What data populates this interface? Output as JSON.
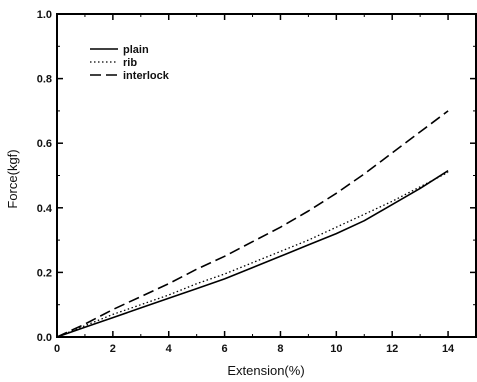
{
  "chart_data": {
    "type": "line",
    "title": "",
    "xlabel": "Extension(%)",
    "ylabel": "Force(kgf)",
    "xlim": [
      0,
      15
    ],
    "ylim": [
      0.0,
      1.0
    ],
    "xticks": [
      "0",
      "2",
      "4",
      "6",
      "8",
      "10",
      "12",
      "14"
    ],
    "yticks": [
      "0.0",
      "0.2",
      "0.4",
      "0.6",
      "0.8",
      "1.0"
    ],
    "grid": false,
    "legend_position": "top-left",
    "series": [
      {
        "name": "plain",
        "style": "solid",
        "color": "#000000",
        "x": [
          0,
          1,
          2,
          3,
          4,
          5,
          6,
          7,
          8,
          9,
          10,
          11,
          12,
          13,
          14
        ],
        "y": [
          0.0,
          0.03,
          0.06,
          0.09,
          0.12,
          0.15,
          0.18,
          0.215,
          0.25,
          0.285,
          0.32,
          0.36,
          0.41,
          0.46,
          0.515
        ]
      },
      {
        "name": "rib",
        "style": "dotted",
        "color": "#000000",
        "x": [
          0,
          1,
          2,
          3,
          4,
          5,
          6,
          7,
          8,
          9,
          10,
          11,
          12,
          13,
          14
        ],
        "y": [
          0.0,
          0.035,
          0.07,
          0.1,
          0.13,
          0.165,
          0.195,
          0.23,
          0.265,
          0.3,
          0.34,
          0.38,
          0.42,
          0.465,
          0.51
        ]
      },
      {
        "name": "interlock",
        "style": "dashed",
        "color": "#000000",
        "x": [
          0,
          1,
          2,
          3,
          4,
          5,
          6,
          7,
          8,
          9,
          10,
          11,
          12,
          13,
          14
        ],
        "y": [
          0.0,
          0.04,
          0.085,
          0.125,
          0.165,
          0.21,
          0.25,
          0.295,
          0.34,
          0.39,
          0.445,
          0.505,
          0.57,
          0.635,
          0.7
        ]
      }
    ]
  }
}
